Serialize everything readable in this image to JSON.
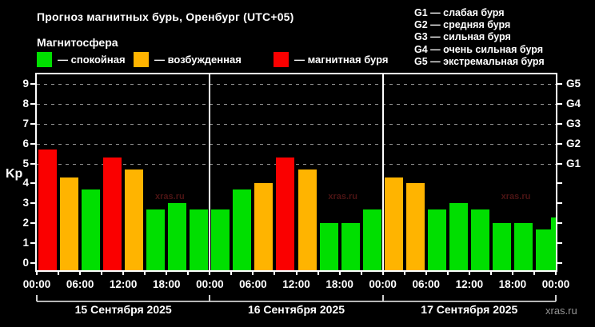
{
  "title": "Прогноз магнитных бурь, Оренбург (UTC+05)",
  "subtitle": "Магнитосфера",
  "legend": {
    "items": [
      {
        "key": "quiet",
        "label": "— спокойная",
        "color": "#00DF00"
      },
      {
        "key": "active",
        "label": "— возбужденная",
        "color": "#FFB400"
      },
      {
        "key": "storm",
        "label": "— магнитная буря",
        "color": "#FA0000"
      }
    ]
  },
  "g_legend": [
    "G1 — слабая буря",
    "G2 — средняя буря",
    "G3 — сильная буря",
    "G4 — очень сильная буря",
    "G5 — экстремальная буря"
  ],
  "site": "xras.ru",
  "plot_watermark": "xras.ru",
  "chart_data": {
    "type": "bar",
    "title": "Прогноз магнитных бурь, Оренбург (UTC+05)",
    "ylabel": "Kp",
    "ylim": [
      0,
      9
    ],
    "y_ticks": [
      0,
      1,
      2,
      3,
      4,
      5,
      6,
      7,
      8,
      9
    ],
    "gridlines_at_kp": [
      5,
      6,
      7,
      8,
      9
    ],
    "grid": "dashed horizontal lines at G-storm levels only",
    "right_axis": [
      {
        "kp": 5,
        "label": "G1"
      },
      {
        "kp": 6,
        "label": "G2"
      },
      {
        "kp": 7,
        "label": "G3"
      },
      {
        "kp": 8,
        "label": "G4"
      },
      {
        "kp": 9,
        "label": "G5"
      }
    ],
    "x_tick_labels": [
      "00:00",
      "06:00",
      "12:00",
      "18:00"
    ],
    "interval_hours": 3,
    "legend_position": "top-left",
    "color_rules": {
      "storm_min_kp": 5,
      "active_min_kp": 4,
      "colors": {
        "quiet": "#00DF00",
        "active": "#FFB400",
        "storm": "#FA0000"
      }
    },
    "days": [
      {
        "date": "15 Сентября 2025",
        "kp": [
          5.7,
          4.3,
          3.7,
          5.3,
          4.7,
          2.7,
          3.0,
          2.7
        ]
      },
      {
        "date": "16 Сентября 2025",
        "kp": [
          2.7,
          3.7,
          4.0,
          5.3,
          4.7,
          2.0,
          2.0,
          2.7
        ]
      },
      {
        "date": "17 Сентября 2025",
        "kp": [
          4.3,
          4.0,
          2.7,
          3.0,
          2.7,
          2.0,
          2.0,
          1.7
        ]
      }
    ],
    "trailing_partial_kp": 2.3
  }
}
